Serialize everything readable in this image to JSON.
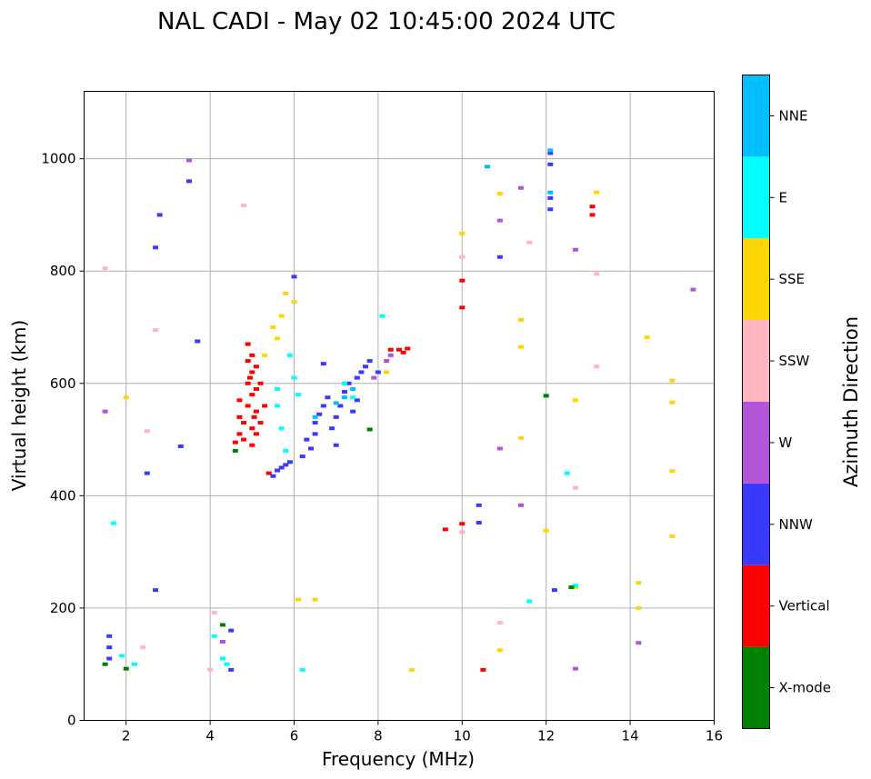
{
  "chart_data": {
    "type": "scatter",
    "title": "NAL CADI - May 02 10:45:00 2024 UTC",
    "xlabel": "Frequency (MHz)",
    "ylabel": "Virtual height (km)",
    "xlim": [
      1,
      16
    ],
    "ylim": [
      0,
      1120
    ],
    "xticks": [
      "2",
      "4",
      "6",
      "8",
      "10",
      "12",
      "14",
      "16"
    ],
    "yticks": [
      "0",
      "200",
      "400",
      "600",
      "800",
      "1000"
    ],
    "grid": true,
    "colorbar": {
      "title": "Azimuth Direction",
      "categories": [
        {
          "name": "X-mode",
          "color": "#008000"
        },
        {
          "name": "Vertical",
          "color": "#ff0000"
        },
        {
          "name": "NNW",
          "color": "#3a3aff"
        },
        {
          "name": "W",
          "color": "#b355d8"
        },
        {
          "name": "SSW",
          "color": "#ffb6c1"
        },
        {
          "name": "SSE",
          "color": "#ffd700"
        },
        {
          "name": "E",
          "color": "#00ffff"
        },
        {
          "name": "NNE",
          "color": "#00bfff"
        }
      ]
    },
    "series": [
      {
        "name": "Vertical",
        "points": [
          [
            4.6,
            495
          ],
          [
            4.7,
            510
          ],
          [
            4.7,
            540
          ],
          [
            4.7,
            570
          ],
          [
            4.8,
            500
          ],
          [
            4.8,
            530
          ],
          [
            4.9,
            560
          ],
          [
            4.9,
            600
          ],
          [
            4.9,
            640
          ],
          [
            4.9,
            670
          ],
          [
            5.0,
            490
          ],
          [
            5.0,
            520
          ],
          [
            5.0,
            580
          ],
          [
            5.0,
            620
          ],
          [
            5.1,
            510
          ],
          [
            5.1,
            550
          ],
          [
            5.1,
            590
          ],
          [
            5.1,
            630
          ],
          [
            5.2,
            530
          ],
          [
            5.2,
            600
          ],
          [
            5.0,
            650
          ],
          [
            4.95,
            610
          ],
          [
            5.05,
            540
          ],
          [
            5.3,
            560
          ],
          [
            5.4,
            440
          ],
          [
            9.6,
            340
          ],
          [
            10.0,
            350
          ],
          [
            10.0,
            735
          ],
          [
            10.0,
            783
          ],
          [
            10.5,
            90
          ],
          [
            13.1,
            900
          ],
          [
            13.1,
            915
          ],
          [
            8.5,
            660
          ],
          [
            8.6,
            655
          ],
          [
            8.3,
            660
          ],
          [
            8.7,
            662
          ]
        ]
      },
      {
        "name": "NNW",
        "points": [
          [
            5.5,
            435
          ],
          [
            5.6,
            445
          ],
          [
            5.7,
            450
          ],
          [
            5.8,
            455
          ],
          [
            5.9,
            460
          ],
          [
            6.2,
            470
          ],
          [
            6.4,
            484
          ],
          [
            6.3,
            500
          ],
          [
            6.5,
            510
          ],
          [
            6.5,
            530
          ],
          [
            6.6,
            545
          ],
          [
            6.7,
            560
          ],
          [
            6.8,
            575
          ],
          [
            6.9,
            520
          ],
          [
            7.0,
            490
          ],
          [
            7.0,
            540
          ],
          [
            7.1,
            560
          ],
          [
            7.2,
            585
          ],
          [
            7.3,
            600
          ],
          [
            7.4,
            550
          ],
          [
            7.5,
            610
          ],
          [
            7.6,
            620
          ],
          [
            7.7,
            630
          ],
          [
            7.8,
            640
          ],
          [
            7.5,
            570
          ],
          [
            6.0,
            790
          ],
          [
            6.7,
            635
          ],
          [
            8.0,
            620
          ],
          [
            3.3,
            488
          ],
          [
            1.6,
            110
          ],
          [
            1.6,
            130
          ],
          [
            1.6,
            150
          ],
          [
            4.5,
            160
          ],
          [
            4.5,
            90
          ],
          [
            2.5,
            440
          ],
          [
            10.4,
            383
          ],
          [
            10.4,
            352
          ],
          [
            10.9,
            825
          ],
          [
            12.2,
            232
          ],
          [
            12.1,
            910
          ],
          [
            12.1,
            930
          ],
          [
            12.1,
            990
          ],
          [
            12.1,
            1010
          ],
          [
            3.7,
            675
          ],
          [
            3.5,
            960
          ],
          [
            2.8,
            900
          ],
          [
            2.7,
            842
          ],
          [
            2.7,
            232
          ]
        ]
      },
      {
        "name": "W",
        "points": [
          [
            1.5,
            550
          ],
          [
            3.5,
            997
          ],
          [
            10.9,
            484
          ],
          [
            10.9,
            890
          ],
          [
            11.4,
            383
          ],
          [
            11.4,
            948
          ],
          [
            12.7,
            838
          ],
          [
            12.7,
            92
          ],
          [
            14.2,
            138
          ],
          [
            15.5,
            767
          ],
          [
            7.9,
            610
          ],
          [
            8.2,
            640
          ],
          [
            8.3,
            650
          ],
          [
            4.3,
            140
          ]
        ]
      },
      {
        "name": "SSW",
        "points": [
          [
            1.5,
            805
          ],
          [
            2.7,
            695
          ],
          [
            4.8,
            917
          ],
          [
            10.0,
            335
          ],
          [
            10.0,
            825
          ],
          [
            10.9,
            174
          ],
          [
            11.6,
            851
          ],
          [
            12.7,
            414
          ],
          [
            13.2,
            630
          ],
          [
            13.2,
            795
          ],
          [
            2.5,
            515
          ],
          [
            2.4,
            130
          ],
          [
            4.1,
            192
          ],
          [
            4.0,
            90
          ]
        ]
      },
      {
        "name": "SSE",
        "points": [
          [
            2.0,
            575
          ],
          [
            5.5,
            700
          ],
          [
            5.6,
            680
          ],
          [
            5.7,
            720
          ],
          [
            5.8,
            760
          ],
          [
            5.3,
            650
          ],
          [
            6.0,
            745
          ],
          [
            6.1,
            215
          ],
          [
            6.5,
            215
          ],
          [
            8.8,
            90
          ],
          [
            10.0,
            867
          ],
          [
            10.9,
            125
          ],
          [
            10.9,
            938
          ],
          [
            11.4,
            713
          ],
          [
            11.4,
            665
          ],
          [
            11.4,
            503
          ],
          [
            12.0,
            338
          ],
          [
            12.7,
            570
          ],
          [
            12.7,
            237
          ],
          [
            13.2,
            940
          ],
          [
            14.2,
            245
          ],
          [
            14.2,
            200
          ],
          [
            14.4,
            682
          ],
          [
            15.0,
            605
          ],
          [
            15.0,
            566
          ],
          [
            15.0,
            444
          ],
          [
            15.0,
            328
          ],
          [
            8.2,
            620
          ]
        ]
      },
      {
        "name": "E",
        "points": [
          [
            1.7,
            351
          ],
          [
            5.6,
            590
          ],
          [
            5.6,
            560
          ],
          [
            5.7,
            520
          ],
          [
            5.8,
            480
          ],
          [
            5.9,
            650
          ],
          [
            6.0,
            610
          ],
          [
            6.1,
            580
          ],
          [
            7.2,
            600
          ],
          [
            7.4,
            575
          ],
          [
            8.1,
            720
          ],
          [
            12.5,
            440
          ],
          [
            12.7,
            240
          ],
          [
            11.6,
            212
          ],
          [
            6.2,
            90
          ],
          [
            4.3,
            110
          ],
          [
            4.4,
            100
          ],
          [
            4.1,
            150
          ],
          [
            2.2,
            100
          ],
          [
            1.9,
            115
          ]
        ]
      },
      {
        "name": "NNE",
        "points": [
          [
            10.6,
            986
          ],
          [
            12.1,
            1015
          ],
          [
            12.1,
            940
          ],
          [
            6.5,
            540
          ],
          [
            7.2,
            575
          ],
          [
            7.4,
            590
          ],
          [
            7.0,
            565
          ]
        ]
      },
      {
        "name": "X-mode",
        "points": [
          [
            12.0,
            578
          ],
          [
            7.8,
            518
          ],
          [
            1.5,
            100
          ],
          [
            2.0,
            92
          ],
          [
            4.6,
            480
          ],
          [
            12.6,
            237
          ],
          [
            4.3,
            170
          ]
        ]
      }
    ]
  }
}
